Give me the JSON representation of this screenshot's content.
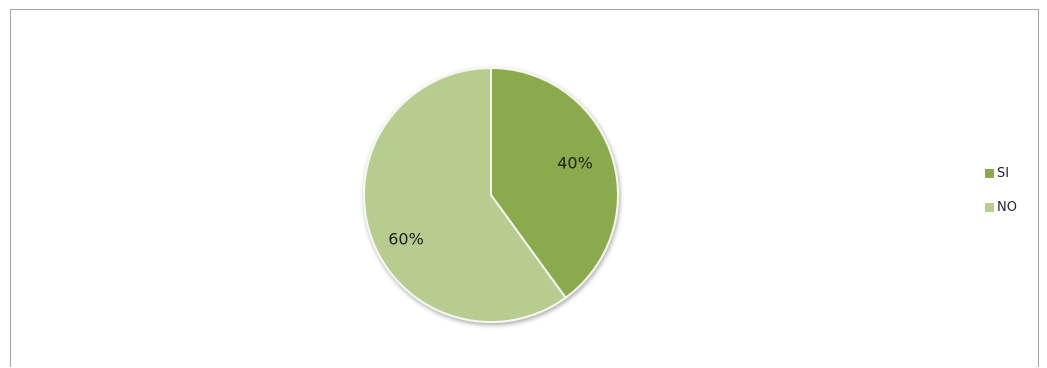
{
  "chart_data": {
    "type": "pie",
    "title": "",
    "categories": [
      "SI",
      "NO"
    ],
    "values": [
      40,
      60
    ],
    "data_labels": [
      "40%",
      "60%"
    ],
    "colors": [
      "#8aaa4e",
      "#b6cd8f"
    ],
    "slice_border_color": "#f4f7ee",
    "legend_position": "right"
  },
  "legend": {
    "items": [
      {
        "label": "SI",
        "color": "#8aaa4e"
      },
      {
        "label": "NO",
        "color": "#b6cd8f"
      }
    ]
  }
}
